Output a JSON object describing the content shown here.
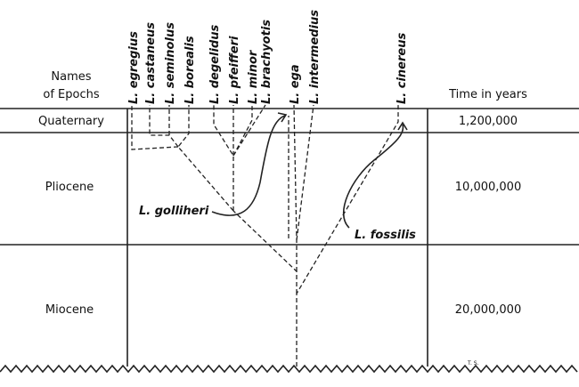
{
  "header": {
    "epoch_column": [
      "Names",
      "of Epochs"
    ],
    "time_column": "Time in years"
  },
  "epochs": [
    {
      "name": "Quaternary",
      "time": "1,200,000"
    },
    {
      "name": "Pliocene",
      "time": "10,000,000"
    },
    {
      "name": "Miocene",
      "time": "20,000,000"
    }
  ],
  "species": [
    "L. egregius",
    "L. castaneus",
    "L. seminolus",
    "L. borealis",
    "L. degelidus",
    "L. pfeifferi",
    "L. minor",
    "L. brachyotis",
    "L. ega",
    "L. intermedius",
    "L. cinereus"
  ],
  "fossils": [
    "L. golliheri",
    "L. fossilis"
  ],
  "signature": "T. S."
}
